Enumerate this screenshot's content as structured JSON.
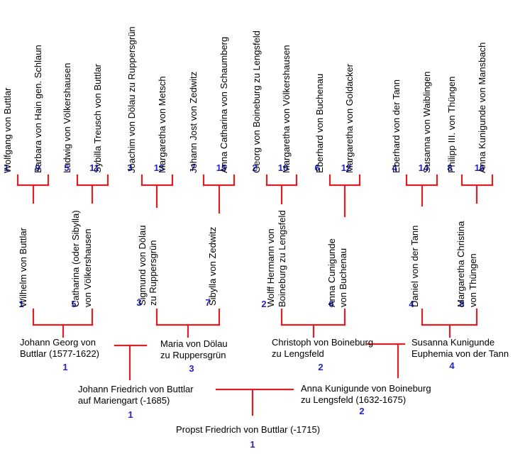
{
  "gen4": [
    {
      "num": "1",
      "name": "Wolfgang von Buttlar"
    },
    {
      "num": "9",
      "name": "Barbara von Hain gen. Schlaun"
    },
    {
      "num": "5",
      "name": "Ludwig von Völkershausen"
    },
    {
      "num": "11",
      "name": "Sybilla Treusch von Buttlar"
    },
    {
      "num": "3",
      "name": "Joachim von Dölau zu Ruppersgrün"
    },
    {
      "num": "13",
      "name": "Margaretha von Metsch"
    },
    {
      "num": "7",
      "name": "Johann Jost von Zedwitz"
    },
    {
      "num": "15",
      "name": "Anna Catharina von Schaumberg"
    },
    {
      "num": "2",
      "name": "Georg von Boineburg zu Lengsfeld"
    },
    {
      "num": "10",
      "name": "Margaretha von Völkershausen"
    },
    {
      "num": "6",
      "name": "Eberhard von Buchenau"
    },
    {
      "num": "12",
      "name": "Margaretha von Goldacker"
    },
    {
      "num": "4",
      "name": "Eberhard von der Tann"
    },
    {
      "num": "14",
      "name": "Susanna von Waiblingen"
    },
    {
      "num": "8",
      "name": "Philipp III. von Thüngen"
    },
    {
      "num": "16",
      "name": "Anna Kunigunde von Mansbach"
    }
  ],
  "gen3": [
    {
      "num": "1",
      "line1": "Wilhelm von Buttlar",
      "line2": ""
    },
    {
      "num": "5",
      "line1": "Catharina (oder Sibylla)",
      "line2": "von Völkershausen"
    },
    {
      "num": "3",
      "line1": "Sigmund von Dölau",
      "line2": "zu Ruppersgrün"
    },
    {
      "num": "7",
      "line1": "Sibylla von Zedwitz",
      "line2": ""
    },
    {
      "num": "2",
      "line1": "Wolff Hermann von",
      "line2": "Boineburg zu Lengsfeld"
    },
    {
      "num": "6",
      "line1": "Anna Cunigunde",
      "line2": "von Buchenau"
    },
    {
      "num": "4",
      "line1": "Daniel von der Tann",
      "line2": ""
    },
    {
      "num": "8",
      "line1": "Margaretha Christina",
      "line2": "von Thüngen"
    }
  ],
  "gen2": [
    {
      "num": "1",
      "line1": "Johann Georg von",
      "line2": "Buttlar (1577-1622)"
    },
    {
      "num": "3",
      "line1": "Maria von Dölau",
      "line2": "zu Ruppersgrün"
    },
    {
      "num": "2",
      "line1": "Christoph von Boineburg",
      "line2": "zu Lengsfeld"
    },
    {
      "num": "4",
      "line1": "Susanna Kunigunde",
      "line2": "Euphemia von der Tann"
    }
  ],
  "gen1": [
    {
      "num": "1",
      "line1": "Johann Friedrich von Buttlar",
      "line2": "auf Mariengart (-1685)"
    },
    {
      "num": "2",
      "line1": "Anna Kunigunde von Boineburg",
      "line2": "zu Lengsfeld (1632-1675)"
    }
  ],
  "proband": {
    "num": "1",
    "name": "Propst Friedrich von Buttlar (-1715)"
  }
}
